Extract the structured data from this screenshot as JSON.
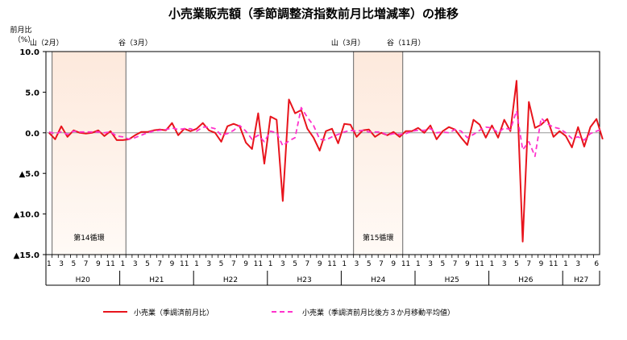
{
  "chart_data": {
    "type": "line",
    "title": "小売業販売額（季節調整済指数前月比増減率）の推移",
    "ylabel": "前月比",
    "yunit": "（%）",
    "ylim": [
      -15,
      10
    ],
    "yticks": [
      10,
      5,
      0,
      -5,
      -10,
      -15
    ],
    "yticklabels": [
      "10.0",
      "5.0",
      "0.0",
      "▲5.0",
      "▲10.0",
      "▲15.0"
    ],
    "years": [
      {
        "label": "H20",
        "months": 12
      },
      {
        "label": "H21",
        "months": 12
      },
      {
        "label": "H22",
        "months": 12
      },
      {
        "label": "H23",
        "months": 12
      },
      {
        "label": "H24",
        "months": 12
      },
      {
        "label": "H25",
        "months": 12
      },
      {
        "label": "H26",
        "months": 12
      },
      {
        "label": "H27",
        "months": 6
      }
    ],
    "month_tick_labels": [
      "1",
      "3",
      "5",
      "7",
      "9",
      "11"
    ],
    "final_month_tick_labels": [
      "1",
      "3",
      "6"
    ],
    "cycle_labels": [
      {
        "text": "山（2月）",
        "month_index": 1
      },
      {
        "text": "谷（3月）",
        "month_index": 14
      },
      {
        "text": "山（3月）",
        "month_index": 50
      },
      {
        "text": "谷（11月）",
        "month_index": 58
      }
    ],
    "shaded_periods": [
      {
        "from": 1,
        "to": 13,
        "label": "第14循環"
      },
      {
        "from": 50,
        "to": 58,
        "label": "第15循環"
      }
    ],
    "series": [
      {
        "name": "小売業（季調済前月比）",
        "color": "#e8141c",
        "dash": "solid",
        "values": [
          0,
          -0.8,
          0.8,
          -0.5,
          0.3,
          0,
          -0.1,
          0,
          0.3,
          -0.4,
          0.2,
          -0.9,
          -0.9,
          -0.8,
          -0.3,
          0.1,
          0.1,
          0.3,
          0.4,
          0.3,
          1.2,
          -0.3,
          0.5,
          0.2,
          0.5,
          1.2,
          0.3,
          0,
          -1.1,
          0.8,
          1.1,
          0.8,
          -1.2,
          -2,
          2.4,
          -3.8,
          2,
          1.6,
          -8.4,
          4.1,
          2.4,
          2.8,
          0.5,
          -0.6,
          -2.2,
          0.2,
          0.5,
          -1.3,
          1.1,
          1.0,
          -0.5,
          0.3,
          0.4,
          -0.5,
          0,
          -0.3,
          0.1,
          -0.5,
          0.2,
          0.2,
          0.6,
          0,
          0.9,
          -0.8,
          0.2,
          0.7,
          0.4,
          -0.6,
          -1.5,
          1.6,
          1.0,
          -0.6,
          0.9,
          -0.6,
          1.6,
          0.2,
          6.4,
          -13.4,
          3.8,
          0.6,
          1.0,
          1.7,
          -0.5,
          0.2,
          -0.4,
          -1.8,
          0.7,
          -1.7,
          0.7,
          1.7,
          -0.8
        ]
      },
      {
        "name": "小売業（季調済前月比後方３か月移動平均値）",
        "color": "#ff33cc",
        "dash": "dashed",
        "values": [
          0.1,
          -0.1,
          0.1,
          -0.2,
          0.2,
          0.1,
          0.1,
          0.1,
          0.1,
          0,
          0.1,
          -0.4,
          -0.5,
          -0.8,
          -0.6,
          -0.3,
          0,
          0.2,
          0.3,
          0.4,
          0.6,
          0.4,
          0.5,
          0.5,
          0.2,
          0.7,
          0.7,
          0.5,
          -0.3,
          -0.1,
          0.3,
          0.9,
          0.2,
          -0.8,
          -0.3,
          -1.1,
          0.2,
          0,
          -1.6,
          -1.0,
          -0.6,
          3.1,
          1.9,
          0.9,
          -0.8,
          -0.9,
          -0.5,
          -0.2,
          0.1,
          0.3,
          0.2,
          0.3,
          0.1,
          0.1,
          0.1,
          -0.3,
          -0.1,
          -0.2,
          -0.1,
          0.2,
          0.3,
          0.3,
          0.5,
          0,
          0.1,
          0,
          0.4,
          0.2,
          -0.6,
          -0.2,
          0.3,
          0.7,
          0.6,
          0,
          0.6,
          0.4,
          2.7,
          -2.1,
          -1.1,
          -2.9,
          1.8,
          1.1,
          0.7,
          0.5,
          0,
          -0.7,
          -0.5,
          -0.9,
          -0.1,
          0.2,
          0.5
        ]
      }
    ]
  }
}
